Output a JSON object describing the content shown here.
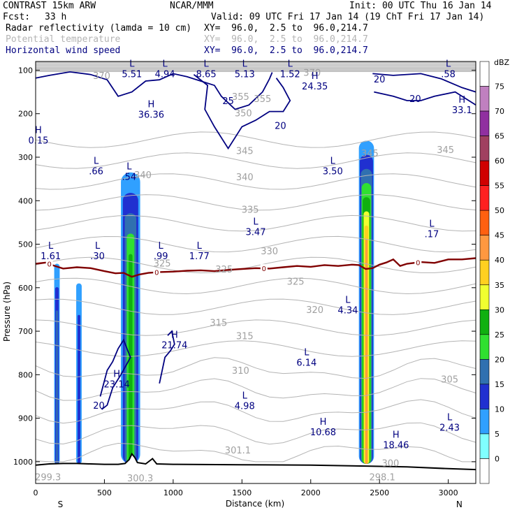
{
  "header": {
    "model": "CONTRAST 15km ARW",
    "center": "NCAR/MMM",
    "init": "Init: 00 UTC Thu 16 Jan 14",
    "fcst_label": "Fcst:",
    "fcst_value": "33 h",
    "valid": "Valid: 09 UTC Fri 17 Jan 14 (19 ChT Fri 17 Jan 14)",
    "fields": [
      {
        "name": "Radar reflectivity (lamda = 10 cm)",
        "xy": "XY=  96.0,  2.5 to  96.0,214.7",
        "color": "#000000"
      },
      {
        "name": "Potential temperature",
        "xy": "XY=  96.0,  2.5 to  96.0,214.7",
        "color": "#b4b4b4"
      },
      {
        "name": "Horizontal wind speed",
        "xy": "XY=  96.0,  2.5 to  96.0,214.7",
        "color": "#000080"
      }
    ]
  },
  "colorbar": {
    "unit": "dBZ",
    "levels": [
      "75",
      "70",
      "65",
      "60",
      "55",
      "50",
      "45",
      "40",
      "35",
      "30",
      "25",
      "20",
      "15",
      "10",
      "5",
      "0"
    ],
    "colors": [
      "#ffffff",
      "#c080c0",
      "#9030a0",
      "#a04060",
      "#d00000",
      "#ff2020",
      "#ff6010",
      "#ff9840",
      "#ffd020",
      "#f0ff30",
      "#10b010",
      "#30e030",
      "#3070b0",
      "#2030d0",
      "#30a0ff",
      "#80ffff",
      "#ffffff"
    ]
  },
  "chart_data": {
    "type": "cross-section",
    "xlabel": "Distance (km)",
    "ylabel": "Pressure (hPa)",
    "xlim": [
      0,
      3200
    ],
    "ylim": [
      1050,
      80
    ],
    "x_ticks": [
      0,
      500,
      1000,
      1500,
      2000,
      2500,
      3000
    ],
    "y_ticks": [
      100,
      200,
      300,
      400,
      500,
      600,
      700,
      800,
      900,
      1000
    ],
    "x_end_labels": {
      "left": "S",
      "right": "N"
    },
    "theta_labels": [
      {
        "x": 480,
        "p": 112,
        "t": "370"
      },
      {
        "x": 2010,
        "p": 105,
        "t": "370"
      },
      {
        "x": 1490,
        "p": 160,
        "t": "355"
      },
      {
        "x": 1650,
        "p": 165,
        "t": "355"
      },
      {
        "x": 1510,
        "p": 198,
        "t": "350"
      },
      {
        "x": 2980,
        "p": 282,
        "t": "345"
      },
      {
        "x": 1520,
        "p": 285,
        "t": "345"
      },
      {
        "x": 2430,
        "p": 290,
        "t": "345"
      },
      {
        "x": 780,
        "p": 340,
        "t": "340"
      },
      {
        "x": 1520,
        "p": 345,
        "t": "340"
      },
      {
        "x": 1560,
        "p": 420,
        "t": "335"
      },
      {
        "x": 1700,
        "p": 515,
        "t": "330"
      },
      {
        "x": 920,
        "p": 543,
        "t": "325"
      },
      {
        "x": 1370,
        "p": 557,
        "t": "325"
      },
      {
        "x": 1890,
        "p": 585,
        "t": "325"
      },
      {
        "x": 2030,
        "p": 650,
        "t": "320"
      },
      {
        "x": 1330,
        "p": 680,
        "t": "315"
      },
      {
        "x": 1520,
        "p": 710,
        "t": "315"
      },
      {
        "x": 1490,
        "p": 790,
        "t": "310"
      },
      {
        "x": 3010,
        "p": 810,
        "t": "305"
      },
      {
        "x": 1470,
        "p": 973,
        "t": "301.1"
      },
      {
        "x": 2580,
        "p": 1003,
        "t": "300"
      },
      {
        "x": 2520,
        "p": 1035,
        "t": "298.1"
      },
      {
        "x": 90,
        "p": 1035,
        "t": "299.3"
      },
      {
        "x": 760,
        "p": 1037,
        "t": "300.3"
      }
    ],
    "wind_labels": [
      {
        "x": 1400,
        "p": 170,
        "t": "25"
      },
      {
        "x": 1780,
        "p": 227,
        "t": "20"
      },
      {
        "x": 2500,
        "p": 120,
        "t": "20"
      },
      {
        "x": 2760,
        "p": 165,
        "t": "20"
      },
      {
        "x": 460,
        "p": 870,
        "t": "20"
      }
    ],
    "highs_lows": [
      {
        "type": "L",
        "x": 700,
        "p": 92,
        "value": "5.51"
      },
      {
        "type": "L",
        "x": 940,
        "p": 92,
        "value": "4.94"
      },
      {
        "type": "L",
        "x": 1240,
        "p": 92,
        "value": "8.65"
      },
      {
        "type": "L",
        "x": 1520,
        "p": 92,
        "value": "5.13"
      },
      {
        "type": "L",
        "x": 1850,
        "p": 92,
        "value": "1.52"
      },
      {
        "type": "L",
        "x": 3000,
        "p": 92,
        "value": ".58"
      },
      {
        "type": "H",
        "x": 2030,
        "p": 120,
        "value": "24.35"
      },
      {
        "type": "H",
        "x": 3100,
        "p": 175,
        "value": "33.1"
      },
      {
        "type": "H",
        "x": 840,
        "p": 185,
        "value": "36.36"
      },
      {
        "type": "H",
        "x": 20,
        "p": 245,
        "value": "0.15"
      },
      {
        "type": "L",
        "x": 440,
        "p": 315,
        "value": ".66"
      },
      {
        "type": "L",
        "x": 680,
        "p": 328,
        "value": ".54"
      },
      {
        "type": "L",
        "x": 2160,
        "p": 315,
        "value": "3.50"
      },
      {
        "type": "L",
        "x": 1600,
        "p": 455,
        "value": "3.47"
      },
      {
        "type": "L",
        "x": 2880,
        "p": 460,
        "value": ".17"
      },
      {
        "type": "L",
        "x": 110,
        "p": 510,
        "value": "1.61"
      },
      {
        "type": "L",
        "x": 450,
        "p": 510,
        "value": ".30"
      },
      {
        "type": "L",
        "x": 910,
        "p": 510,
        "value": ".99"
      },
      {
        "type": "L",
        "x": 1190,
        "p": 510,
        "value": "1.77"
      },
      {
        "type": "L",
        "x": 2270,
        "p": 635,
        "value": "4.34"
      },
      {
        "type": "H",
        "x": 1010,
        "p": 715,
        "value": "21.74"
      },
      {
        "type": "L",
        "x": 1970,
        "p": 755,
        "value": "6.14"
      },
      {
        "type": "H",
        "x": 590,
        "p": 805,
        "value": "23.14"
      },
      {
        "type": "L",
        "x": 1520,
        "p": 855,
        "value": "4.98"
      },
      {
        "type": "L",
        "x": 3010,
        "p": 905,
        "value": "2.43"
      },
      {
        "type": "H",
        "x": 2090,
        "p": 915,
        "value": "10.68"
      },
      {
        "type": "H",
        "x": 2620,
        "p": 945,
        "value": "18.46"
      }
    ],
    "freezing_line_label": "0",
    "freezing_line": [
      [
        0,
        545
      ],
      [
        80,
        542
      ],
      [
        120,
        548
      ],
      [
        200,
        556
      ],
      [
        300,
        553
      ],
      [
        400,
        555
      ],
      [
        500,
        562
      ],
      [
        580,
        567
      ],
      [
        640,
        566
      ],
      [
        700,
        575
      ],
      [
        750,
        570
      ],
      [
        820,
        566
      ],
      [
        900,
        564
      ],
      [
        1000,
        563
      ],
      [
        1100,
        561
      ],
      [
        1200,
        560
      ],
      [
        1300,
        562
      ],
      [
        1400,
        559
      ],
      [
        1500,
        557
      ],
      [
        1600,
        555
      ],
      [
        1700,
        556
      ],
      [
        1800,
        553
      ],
      [
        1900,
        550
      ],
      [
        2000,
        552
      ],
      [
        2100,
        548
      ],
      [
        2200,
        550
      ],
      [
        2300,
        547
      ],
      [
        2350,
        548
      ],
      [
        2400,
        557
      ],
      [
        2450,
        555
      ],
      [
        2500,
        547
      ],
      [
        2550,
        542
      ],
      [
        2600,
        535
      ],
      [
        2650,
        550
      ],
      [
        2700,
        545
      ],
      [
        2800,
        541
      ],
      [
        2900,
        543
      ],
      [
        3000,
        535
      ],
      [
        3100,
        535
      ],
      [
        3200,
        532
      ]
    ],
    "reflectivity_cells": [
      {
        "x_center": 155,
        "x_width": 40,
        "p_top": 545,
        "p_bottom": 1005,
        "dbz_max": 15
      },
      {
        "x_center": 315,
        "x_width": 40,
        "p_top": 590,
        "p_bottom": 1005,
        "dbz_max": 10
      },
      {
        "x_center": 690,
        "x_width": 140,
        "p_top": 335,
        "p_bottom": 1005,
        "dbz_max": 25
      },
      {
        "x_center": 2405,
        "x_width": 110,
        "p_top": 262,
        "p_bottom": 1005,
        "dbz_max": 40
      }
    ],
    "terrain": [
      [
        0,
        1008
      ],
      [
        100,
        1005
      ],
      [
        200,
        1004
      ],
      [
        300,
        1004
      ],
      [
        400,
        1005
      ],
      [
        500,
        1006
      ],
      [
        600,
        1006
      ],
      [
        650,
        1004
      ],
      [
        680,
        995
      ],
      [
        700,
        982
      ],
      [
        720,
        990
      ],
      [
        740,
        1002
      ],
      [
        800,
        1005
      ],
      [
        850,
        993
      ],
      [
        880,
        1005
      ],
      [
        1000,
        1006
      ],
      [
        1500,
        1007
      ],
      [
        2000,
        1008
      ],
      [
        2400,
        1010
      ],
      [
        2700,
        1012
      ],
      [
        3000,
        1016
      ],
      [
        3200,
        1018
      ]
    ]
  }
}
